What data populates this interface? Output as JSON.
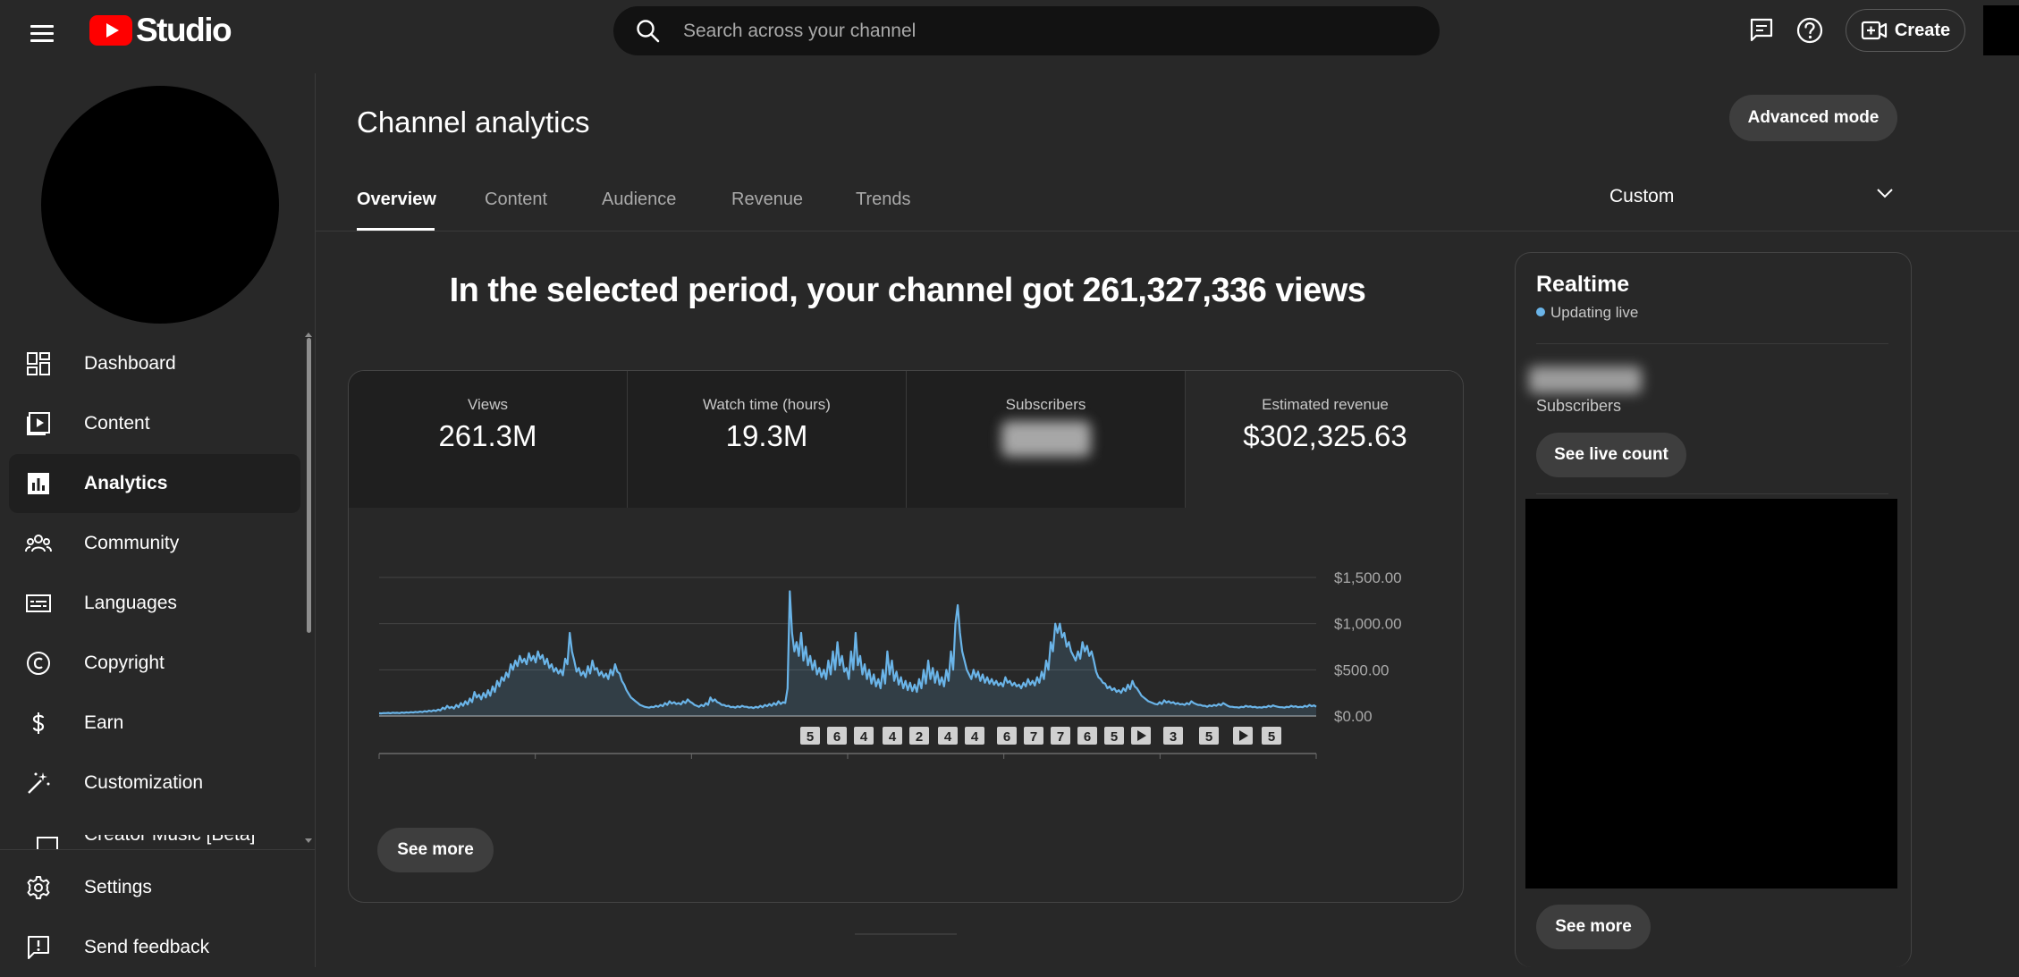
{
  "app": {
    "logo_text": "Studio"
  },
  "header": {
    "search_placeholder": "Search across your channel",
    "create_label": "Create"
  },
  "sidebar": {
    "items": [
      {
        "label": "Dashboard",
        "icon": "dashboard-icon"
      },
      {
        "label": "Content",
        "icon": "content-icon"
      },
      {
        "label": "Analytics",
        "icon": "analytics-icon",
        "active": true
      },
      {
        "label": "Community",
        "icon": "community-icon"
      },
      {
        "label": "Languages",
        "icon": "languages-icon"
      },
      {
        "label": "Copyright",
        "icon": "copyright-icon"
      },
      {
        "label": "Earn",
        "icon": "earn-icon"
      },
      {
        "label": "Customization",
        "icon": "customization-icon"
      },
      {
        "label": "Creator Music [Beta]",
        "icon": "music-icon"
      }
    ],
    "bottom_items": [
      {
        "label": "Settings",
        "icon": "settings-icon"
      },
      {
        "label": "Send feedback",
        "icon": "feedback-icon"
      }
    ]
  },
  "main": {
    "title": "Channel analytics",
    "advanced_mode_label": "Advanced mode",
    "tabs": [
      {
        "label": "Overview",
        "active": true
      },
      {
        "label": "Content"
      },
      {
        "label": "Audience"
      },
      {
        "label": "Revenue"
      },
      {
        "label": "Trends"
      }
    ],
    "date_range": "Custom",
    "headline": "In the selected period, your channel got 261,327,336 views",
    "metrics": [
      {
        "label": "Views",
        "value": "261.3M"
      },
      {
        "label": "Watch time (hours)",
        "value": "19.3M"
      },
      {
        "label": "Subscribers",
        "value": null,
        "blurred": true
      },
      {
        "label": "Estimated revenue",
        "value": "$302,325.63"
      }
    ],
    "see_more_label": "See more"
  },
  "chart_data": {
    "type": "area",
    "series_color": "#6ab4e8",
    "y_tick_labels": [
      "$0.00",
      "$500.00",
      "$1,000.00",
      "$1,500.00"
    ],
    "ylim": [
      0,
      1500
    ],
    "x_tick_count": 6,
    "values": [
      30,
      28,
      32,
      31,
      34,
      30,
      36,
      33,
      35,
      31,
      38,
      34,
      40,
      36,
      42,
      38,
      45,
      41,
      47,
      43,
      52,
      46,
      58,
      50,
      62,
      54,
      70,
      60,
      90,
      75,
      110,
      85,
      100,
      80,
      120,
      95,
      140,
      110,
      160,
      125,
      190,
      150,
      260,
      200,
      230,
      180,
      250,
      200,
      280,
      220,
      320,
      260,
      380,
      320,
      420,
      380,
      470,
      420,
      560,
      500,
      600,
      540,
      650,
      580,
      620,
      560,
      680,
      600,
      650,
      580,
      700,
      620,
      660,
      560,
      620,
      520,
      560,
      480,
      520,
      460,
      500,
      440,
      620,
      560,
      900,
      700,
      600,
      480,
      520,
      440,
      480,
      420,
      540,
      460,
      600,
      500,
      520,
      440,
      480,
      420,
      460,
      400,
      500,
      440,
      560,
      480,
      460,
      380,
      340,
      280,
      240,
      200,
      180,
      160,
      140,
      120,
      110,
      100,
      95,
      90,
      100,
      95,
      110,
      100,
      120,
      105,
      140,
      120,
      160,
      135,
      150,
      130,
      140,
      125,
      160,
      140,
      180,
      155,
      140,
      120,
      110,
      100,
      120,
      105,
      140,
      120,
      200,
      160,
      180,
      150,
      140,
      120,
      120,
      105,
      110,
      95,
      100,
      90,
      105,
      95,
      110,
      100,
      100,
      90,
      95,
      85,
      100,
      90,
      110,
      95,
      120,
      105,
      130,
      110,
      140,
      120,
      160,
      130,
      150,
      140,
      300,
      1350,
      900,
      700,
      800,
      650,
      900,
      600,
      750,
      550,
      650,
      500,
      600,
      450,
      520,
      420,
      500,
      400,
      600,
      450,
      700,
      500,
      800,
      550,
      650,
      480,
      520,
      400,
      700,
      500,
      900,
      550,
      650,
      450,
      560,
      400,
      500,
      350,
      450,
      320,
      400,
      300,
      500,
      350,
      700,
      450,
      600,
      380,
      480,
      340,
      420,
      300,
      380,
      280,
      360,
      270,
      340,
      260,
      400,
      300,
      500,
      350,
      600,
      400,
      520,
      360,
      480,
      340,
      420,
      320,
      500,
      380,
      700,
      500,
      1000,
      1200,
      900,
      700,
      600,
      500,
      450,
      400,
      500,
      420,
      480,
      380,
      450,
      360,
      420,
      350,
      400,
      340,
      380,
      330,
      360,
      320,
      420,
      360,
      380,
      330,
      360,
      320,
      340,
      300,
      360,
      320,
      400,
      340,
      380,
      330,
      420,
      360,
      480,
      400,
      600,
      500,
      800,
      700,
      1000,
      900,
      1000,
      850,
      900,
      750,
      800,
      700,
      650,
      600,
      700,
      620,
      800,
      700,
      760,
      650,
      700,
      600,
      480,
      420,
      400,
      360,
      350,
      300,
      320,
      280,
      300,
      260,
      280,
      250,
      300,
      270,
      340,
      290,
      380,
      320,
      300,
      260,
      220,
      200,
      180,
      160,
      150,
      140,
      130,
      125,
      150,
      130,
      170,
      145,
      160,
      140,
      150,
      130,
      140,
      125,
      130,
      120,
      140,
      125,
      160,
      140,
      130,
      120,
      120,
      110,
      110,
      100,
      115,
      105,
      120,
      110,
      130,
      115,
      140,
      125,
      110,
      100,
      100,
      95,
      95,
      90,
      100,
      95,
      110,
      100,
      105,
      95,
      100,
      90,
      95,
      90,
      100,
      95,
      110,
      100,
      115,
      105,
      100,
      95,
      95,
      90,
      100,
      95,
      110,
      100,
      105,
      95,
      100,
      95,
      110,
      100,
      120,
      105,
      115,
      100
    ]
  },
  "chart_markers": [
    "5",
    "6",
    "4",
    "4",
    "2",
    "4",
    "4",
    "6",
    "7",
    "7",
    "6",
    "5",
    "play",
    "3",
    "5",
    "play",
    "5"
  ],
  "realtime": {
    "title": "Realtime",
    "status": "Updating live",
    "subs_label": "Subscribers",
    "live_count_label": "See live count",
    "see_more_label": "See more"
  }
}
